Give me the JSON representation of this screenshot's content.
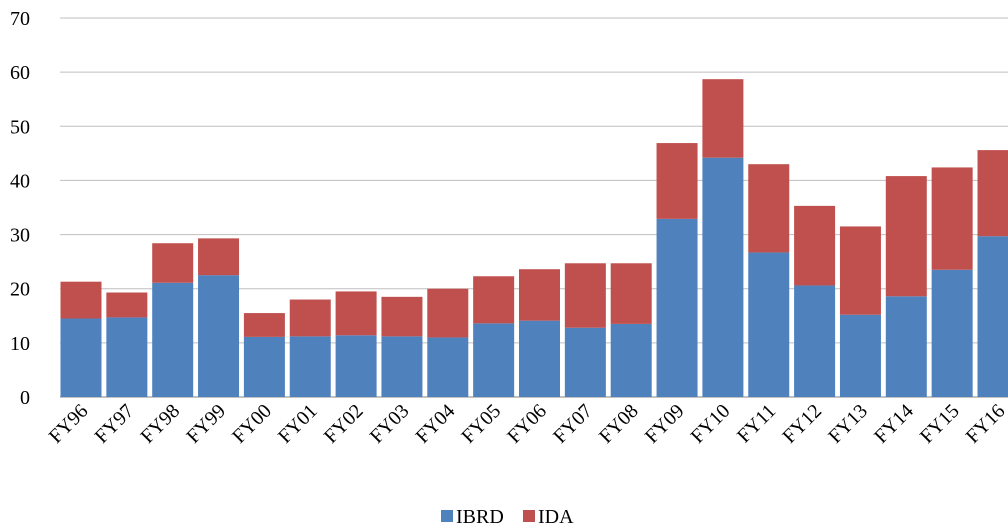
{
  "chart_data": {
    "type": "bar",
    "stacked": true,
    "categories": [
      "FY96",
      "FY97",
      "FY98",
      "FY99",
      "FY00",
      "FY01",
      "FY02",
      "FY03",
      "FY04",
      "FY05",
      "FY06",
      "FY07",
      "FY08",
      "FY09",
      "FY10",
      "FY11",
      "FY12",
      "FY13",
      "FY14",
      "FY15",
      "FY16"
    ],
    "series": [
      {
        "name": "IBRD",
        "color": "#4f81bd",
        "values": [
          14.5,
          14.7,
          21.1,
          22.5,
          11.1,
          11.2,
          11.4,
          11.2,
          11.0,
          13.6,
          14.1,
          12.8,
          13.5,
          32.9,
          44.2,
          26.7,
          20.6,
          15.2,
          18.6,
          23.5,
          29.7
        ]
      },
      {
        "name": "IDA",
        "color": "#c0504d",
        "values": [
          6.8,
          4.6,
          7.3,
          6.8,
          4.4,
          6.8,
          8.1,
          7.3,
          9.0,
          8.7,
          9.5,
          11.9,
          11.2,
          14.0,
          14.5,
          16.3,
          14.7,
          16.3,
          22.2,
          18.9,
          15.9
        ]
      }
    ],
    "ylim": [
      0,
      70
    ],
    "yticks": [
      0,
      10,
      20,
      30,
      40,
      50,
      60,
      70
    ],
    "title": "",
    "xlabel": "",
    "ylabel": "",
    "grid": true,
    "legend_position": "bottom"
  }
}
